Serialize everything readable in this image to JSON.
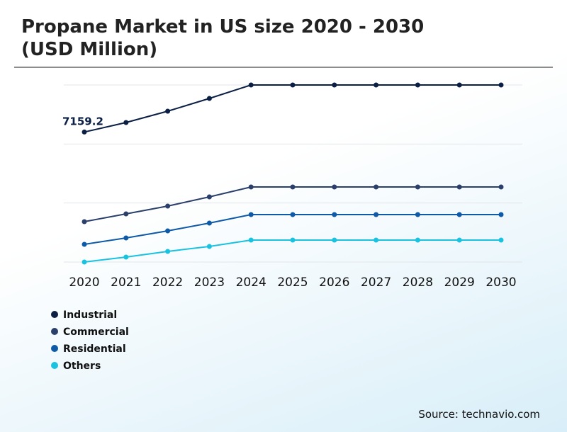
{
  "chart_data": {
    "type": "line",
    "title": "Propane Market in US size 2020 - 2030 (USD Million)",
    "categories": [
      "2020",
      "2021",
      "2022",
      "2023",
      "2024",
      "2025",
      "2026",
      "2027",
      "2028",
      "2029",
      "2030"
    ],
    "series": [
      {
        "name": "Industrial",
        "color": "#0b1f44",
        "values": [
          7159.2,
          7683,
          8307,
          9009,
          9750,
          9750,
          9750,
          9750,
          9750,
          9750,
          9750
        ]
      },
      {
        "name": "Commercial",
        "color": "#2b3f6b",
        "values": [
          2223,
          2652,
          3081,
          3588,
          4134,
          4134,
          4134,
          4134,
          4134,
          4134,
          4134
        ]
      },
      {
        "name": "Residential",
        "color": "#0f5aa6",
        "values": [
          975,
          1326,
          1716,
          2145,
          2613,
          2613,
          2613,
          2613,
          2613,
          2613,
          2613
        ]
      },
      {
        "name": "Others",
        "color": "#19c3e0",
        "values": [
          0,
          273,
          585,
          858,
          1209,
          1209,
          1209,
          1209,
          1209,
          1209,
          1209
        ]
      }
    ],
    "ylim": [
      0,
      9750
    ],
    "yticks": [
      0,
      3250,
      6500,
      9750
    ],
    "grid": true,
    "source": "Source: technavio.com"
  }
}
